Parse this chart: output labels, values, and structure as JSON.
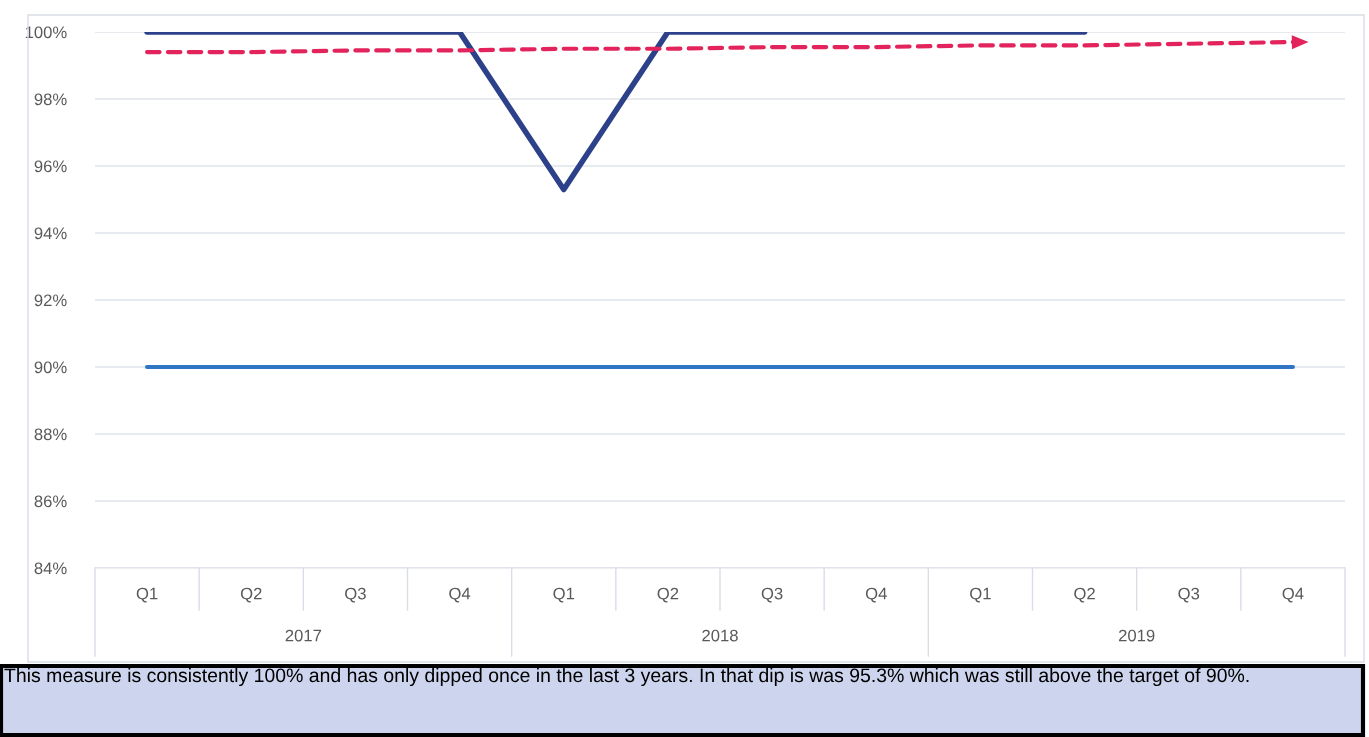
{
  "chart_data": {
    "type": "line",
    "categories": [
      "Q1",
      "Q2",
      "Q3",
      "Q4",
      "Q1",
      "Q2",
      "Q3",
      "Q4",
      "Q1",
      "Q2",
      "Q3",
      "Q4"
    ],
    "series": [
      {
        "color": "#2c4189",
        "values": [
          100,
          100,
          100,
          100,
          95.3,
          100,
          100,
          100,
          100,
          100,
          null,
          null
        ]
      },
      {
        "color": "#2e75c6",
        "values": [
          90,
          90,
          90,
          90,
          90,
          90,
          90,
          90,
          90,
          90,
          90,
          90
        ]
      },
      {
        "color": "#e3245c",
        "line_style": "dashed",
        "values": [
          99.4,
          99.4,
          99.45,
          99.45,
          99.5,
          99.5,
          99.55,
          99.55,
          99.6,
          99.6,
          99.65,
          99.7
        ]
      }
    ],
    "ylim": [
      84,
      100
    ],
    "yticks": [
      {
        "value": 84,
        "label": "84%"
      },
      {
        "value": 86,
        "label": "86%"
      },
      {
        "value": 88,
        "label": "88%"
      },
      {
        "value": 90,
        "label": "90%"
      },
      {
        "value": 92,
        "label": "92%"
      },
      {
        "value": 94,
        "label": "94%"
      },
      {
        "value": 96,
        "label": "96%"
      },
      {
        "value": 98,
        "label": "98%"
      },
      {
        "value": 100,
        "label": "100%"
      }
    ],
    "grid": "y",
    "annotations": [
      "2017",
      "2018",
      "2019",
      "This measure is consistently 100% and has only dipped once in the last 3 years. In that dip is was 95.3% which was still above the target of 90%."
    ]
  }
}
